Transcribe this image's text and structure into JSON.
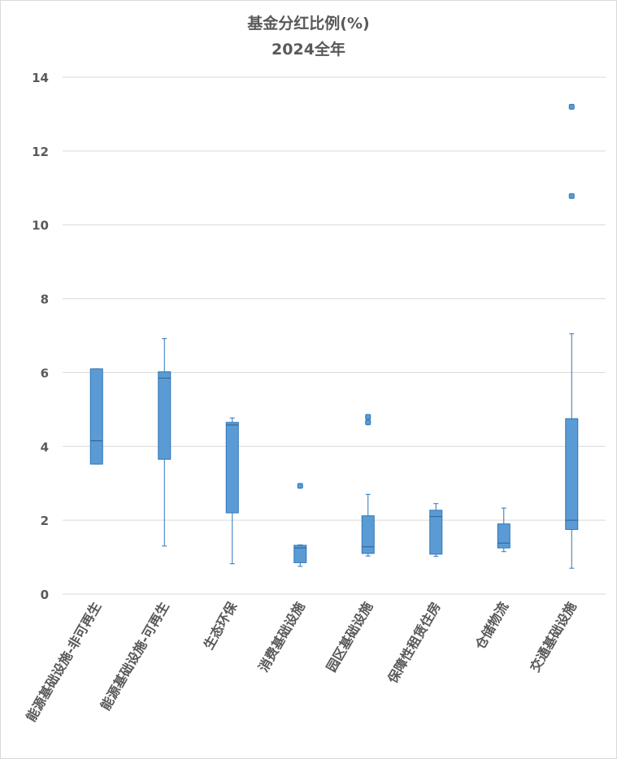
{
  "chart_data": {
    "type": "boxplot",
    "title": "基金分红比例(%)",
    "subtitle": "2024全年",
    "ylim": [
      0,
      14
    ],
    "yticks": [
      0,
      2,
      4,
      6,
      8,
      10,
      12,
      14
    ],
    "grid": true,
    "categories": [
      "能源基础设施-非可再生",
      "能源基础设施-可再生",
      "生态环保",
      "消费基础设施",
      "园区基础设施",
      "保障性租赁住房",
      "仓储物流",
      "交通基础设施"
    ],
    "series": [
      {
        "min": 3.52,
        "q1": 3.52,
        "median": 4.15,
        "q3": 6.1,
        "max": 6.1,
        "outliers": []
      },
      {
        "min": 1.3,
        "q1": 3.65,
        "median": 5.85,
        "q3": 6.02,
        "max": 6.92,
        "outliers": []
      },
      {
        "min": 0.82,
        "q1": 2.2,
        "median": 4.58,
        "q3": 4.65,
        "max": 4.77,
        "outliers": []
      },
      {
        "min": 0.75,
        "q1": 0.85,
        "median": 1.25,
        "q3": 1.32,
        "max": 1.33,
        "outliers": [
          2.93
        ]
      },
      {
        "min": 1.03,
        "q1": 1.1,
        "median": 1.28,
        "q3": 2.12,
        "max": 2.7,
        "outliers": [
          4.65,
          4.8
        ]
      },
      {
        "min": 1.02,
        "q1": 1.08,
        "median": 2.1,
        "q3": 2.27,
        "max": 2.45,
        "outliers": []
      },
      {
        "min": 1.15,
        "q1": 1.25,
        "median": 1.38,
        "q3": 1.9,
        "max": 2.33,
        "outliers": []
      },
      {
        "min": 0.7,
        "q1": 1.75,
        "median": 2.0,
        "q3": 4.75,
        "max": 7.05,
        "outliers": [
          10.78,
          13.2
        ]
      }
    ],
    "colors": {
      "box_fill": "#5b9bd5",
      "box_stroke": "#2e75b6",
      "grid": "#d9d9d9",
      "text": "#595959"
    }
  }
}
